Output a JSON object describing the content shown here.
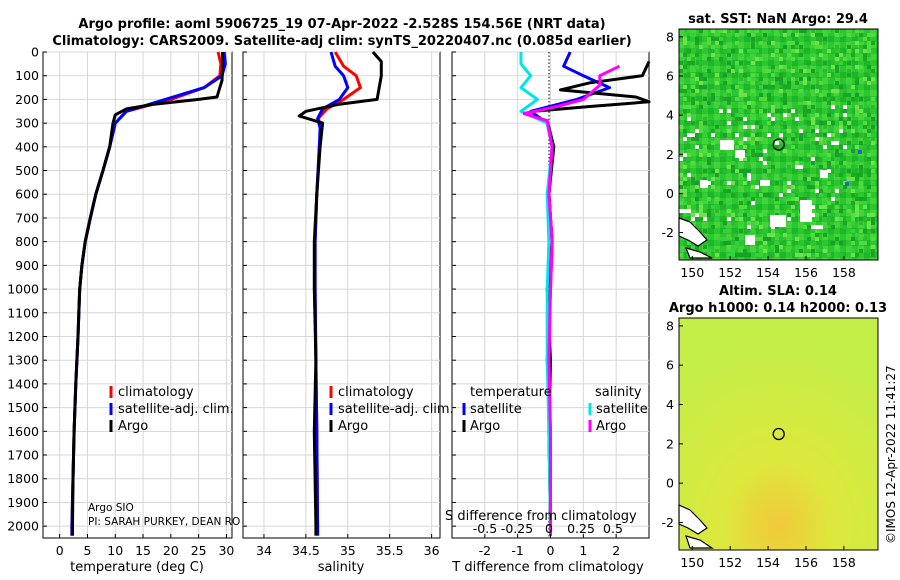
{
  "header": {
    "title_line1": "Argo profile: aoml 5906725_19 07-Apr-2022 -2.528S 154.56E (NRT data)",
    "title_line2": "Climatology: CARS2009. Satellite-adj clim: synTS_20220407.nc (0.085d earlier)"
  },
  "side_stamp": "©IMOS 12-Apr-2022 11:41:27",
  "chart_data": [
    {
      "id": "temp",
      "type": "line",
      "xlabel": "temperature (deg C)",
      "ylabel": "",
      "xlim": [
        -3,
        31
      ],
      "ylim": [
        2050,
        0
      ],
      "xticks": [
        "0",
        "5",
        "10",
        "15",
        "20",
        "25",
        "30"
      ],
      "xtick_values": [
        0,
        5,
        10,
        15,
        20,
        25,
        30
      ],
      "yticks": [
        "0",
        "100",
        "200",
        "300",
        "400",
        "500",
        "600",
        "700",
        "800",
        "900",
        "1000",
        "1100",
        "1200",
        "1300",
        "1400",
        "1500",
        "1600",
        "1700",
        "1800",
        "1900",
        "2000"
      ],
      "ytick_values": [
        0,
        100,
        200,
        300,
        400,
        500,
        600,
        700,
        800,
        900,
        1000,
        1100,
        1200,
        1300,
        1400,
        1500,
        1600,
        1700,
        1800,
        1900,
        2000
      ],
      "series": [
        {
          "name": "climatology",
          "color": "#ff0000",
          "points": [
            [
              28.5,
              0
            ],
            [
              29.0,
              50
            ],
            [
              28.8,
              100
            ],
            [
              26,
              150
            ],
            [
              20,
              200
            ],
            [
              12,
              250
            ],
            [
              10,
              300
            ],
            [
              9,
              400
            ],
            [
              7.8,
              500
            ],
            [
              6.5,
              600
            ],
            [
              5.5,
              700
            ],
            [
              4.6,
              800
            ],
            [
              4.0,
              900
            ],
            [
              3.6,
              1000
            ],
            [
              3.3,
              1200
            ],
            [
              2.9,
              1400
            ],
            [
              2.6,
              1600
            ],
            [
              2.4,
              1800
            ],
            [
              2.2,
              2000
            ],
            [
              2.2,
              2040
            ]
          ]
        },
        {
          "name": "satellite-adj. clim.",
          "color": "#0000ff",
          "points": [
            [
              29.6,
              0
            ],
            [
              29.8,
              50
            ],
            [
              29.2,
              100
            ],
            [
              26,
              150
            ],
            [
              19,
              200
            ],
            [
              12,
              250
            ],
            [
              10,
              300
            ],
            [
              9,
              400
            ],
            [
              7.8,
              500
            ],
            [
              6.5,
              600
            ],
            [
              5.5,
              700
            ],
            [
              4.6,
              800
            ],
            [
              4.0,
              900
            ],
            [
              3.6,
              1000
            ],
            [
              3.3,
              1200
            ],
            [
              2.9,
              1400
            ],
            [
              2.6,
              1600
            ],
            [
              2.4,
              1800
            ],
            [
              2.2,
              2000
            ],
            [
              2.2,
              2040
            ]
          ]
        },
        {
          "name": "Argo",
          "color": "#000000",
          "points": [
            [
              29.3,
              0
            ],
            [
              29.3,
              60
            ],
            [
              29.2,
              120
            ],
            [
              28.8,
              150
            ],
            [
              28.3,
              190
            ],
            [
              25,
              200
            ],
            [
              17,
              220
            ],
            [
              12,
              240
            ],
            [
              10,
              265
            ],
            [
              9.6,
              300
            ],
            [
              9,
              400
            ],
            [
              7.8,
              500
            ],
            [
              6.5,
              600
            ],
            [
              5.5,
              700
            ],
            [
              4.6,
              800
            ],
            [
              4.0,
              900
            ],
            [
              3.6,
              1000
            ],
            [
              3.3,
              1200
            ],
            [
              2.9,
              1400
            ],
            [
              2.6,
              1600
            ],
            [
              2.4,
              1800
            ],
            [
              2.3,
              2000
            ],
            [
              2.3,
              2040
            ]
          ]
        }
      ],
      "legend": [
        "climatology",
        "satellite-adj. clim.",
        "Argo"
      ],
      "annotations": [
        "Argo SIO",
        "PI: SARAH PURKEY, DEAN RO"
      ]
    },
    {
      "id": "sal",
      "type": "line",
      "xlabel": "salinity",
      "ylabel": "",
      "xlim": [
        33.75,
        36.1
      ],
      "ylim": [
        2050,
        0
      ],
      "xticks": [
        "34",
        "34.5",
        "35",
        "35.5",
        "36"
      ],
      "xtick_values": [
        34,
        34.5,
        35,
        35.5,
        36
      ],
      "series": [
        {
          "name": "climatology",
          "color": "#ff0000",
          "points": [
            [
              34.85,
              0
            ],
            [
              34.95,
              60
            ],
            [
              35.1,
              100
            ],
            [
              35.15,
              150
            ],
            [
              34.95,
              200
            ],
            [
              34.75,
              240
            ],
            [
              34.65,
              280
            ],
            [
              34.68,
              320
            ],
            [
              34.66,
              400
            ],
            [
              34.63,
              600
            ],
            [
              34.61,
              800
            ],
            [
              34.61,
              1000
            ],
            [
              34.62,
              1300
            ],
            [
              34.63,
              1600
            ],
            [
              34.64,
              2000
            ],
            [
              34.64,
              2040
            ]
          ]
        },
        {
          "name": "satellite-adj. clim.",
          "color": "#0000ff",
          "points": [
            [
              34.8,
              0
            ],
            [
              34.85,
              60
            ],
            [
              34.95,
              100
            ],
            [
              35.0,
              150
            ],
            [
              34.9,
              200
            ],
            [
              34.7,
              240
            ],
            [
              34.64,
              280
            ],
            [
              34.67,
              320
            ],
            [
              34.66,
              400
            ],
            [
              34.63,
              600
            ],
            [
              34.61,
              800
            ],
            [
              34.61,
              1000
            ],
            [
              34.62,
              1300
            ],
            [
              34.63,
              1600
            ],
            [
              34.64,
              2000
            ],
            [
              34.64,
              2040
            ]
          ]
        },
        {
          "name": "Argo",
          "color": "#000000",
          "points": [
            [
              35.3,
              0
            ],
            [
              35.4,
              40
            ],
            [
              35.4,
              100
            ],
            [
              35.35,
              200
            ],
            [
              34.9,
              220
            ],
            [
              34.5,
              250
            ],
            [
              34.42,
              270
            ],
            [
              34.7,
              300
            ],
            [
              34.67,
              400
            ],
            [
              34.63,
              600
            ],
            [
              34.6,
              800
            ],
            [
              34.6,
              1000
            ],
            [
              34.62,
              1300
            ],
            [
              34.6,
              1600
            ],
            [
              34.62,
              2000
            ],
            [
              34.62,
              2040
            ]
          ]
        }
      ],
      "legend": [
        "climatology",
        "satellite-adj. clim.",
        "Argo"
      ]
    },
    {
      "id": "diff",
      "type": "line",
      "xlabel": "T difference from climatology",
      "ylabel": "",
      "xlim": [
        -3,
        3
      ],
      "ylim": [
        2050,
        0
      ],
      "xticks": [
        "-2",
        "-1",
        "0",
        "1",
        "2"
      ],
      "xtick_values": [
        -2,
        -1,
        0,
        1,
        2
      ],
      "secondary_axis_label": "S difference from climatology",
      "secondary_ticks": [
        "-0.5",
        "-0.25",
        "0",
        "0.25",
        "0.5"
      ],
      "secondary_tick_values": [
        -0.5,
        -0.25,
        0,
        0.25,
        0.5
      ],
      "series": [
        {
          "name": "temperature satellite",
          "color": "#0000ff",
          "points": [
            [
              0.6,
              0
            ],
            [
              0.4,
              60
            ],
            [
              1.0,
              100
            ],
            [
              1.8,
              150
            ],
            [
              0.8,
              200
            ],
            [
              -0.6,
              250
            ],
            [
              -0.1,
              300
            ],
            [
              0.05,
              400
            ],
            [
              -0.05,
              600
            ],
            [
              0.05,
              800
            ],
            [
              0,
              1000
            ],
            [
              -0.1,
              1300
            ],
            [
              0,
              1600
            ],
            [
              0,
              2000
            ],
            [
              0,
              2040
            ]
          ]
        },
        {
          "name": "temperature Argo",
          "color": "#000000",
          "points": [
            [
              3,
              40
            ],
            [
              2.8,
              100
            ],
            [
              1.2,
              130
            ],
            [
              0.3,
              160
            ],
            [
              2.6,
              190
            ],
            [
              3,
              210
            ],
            [
              1.2,
              230
            ],
            [
              -0.5,
              250
            ],
            [
              -0.8,
              260
            ],
            [
              -0.1,
              290
            ],
            [
              0.1,
              400
            ],
            [
              -0.05,
              600
            ],
            [
              0.05,
              800
            ],
            [
              -0.1,
              1000
            ],
            [
              0,
              1300
            ],
            [
              -0.05,
              1600
            ],
            [
              0,
              2000
            ],
            [
              0,
              2040
            ]
          ]
        },
        {
          "name": "salinity satellite",
          "color": "#00e5e5",
          "points": [
            [
              -0.9,
              0
            ],
            [
              -0.9,
              50
            ],
            [
              -0.6,
              100
            ],
            [
              -0.9,
              150
            ],
            [
              -0.4,
              200
            ],
            [
              -0.9,
              250
            ],
            [
              -0.1,
              300
            ],
            [
              0.05,
              400
            ],
            [
              -0.1,
              600
            ],
            [
              -0.05,
              800
            ],
            [
              -0.1,
              1000
            ],
            [
              -0.1,
              1300
            ],
            [
              -0.05,
              1600
            ],
            [
              0,
              2000
            ],
            [
              0,
              2040
            ]
          ]
        },
        {
          "name": "salinity Argo",
          "color": "#ff00ff",
          "points": [
            [
              2.1,
              60
            ],
            [
              1.5,
              100
            ],
            [
              1.5,
              140
            ],
            [
              1.0,
              200
            ],
            [
              0.2,
              230
            ],
            [
              -0.8,
              260
            ],
            [
              -0.1,
              290
            ],
            [
              0.05,
              400
            ],
            [
              -0.05,
              600
            ],
            [
              0.05,
              800
            ],
            [
              0,
              1000
            ],
            [
              -0.05,
              1300
            ],
            [
              0,
              1600
            ],
            [
              0,
              2000
            ],
            [
              0,
              2040
            ]
          ]
        }
      ],
      "legend_groups": [
        {
          "title": "temperature",
          "items": [
            "satellite",
            "Argo"
          ]
        },
        {
          "title": "salinity",
          "items": [
            "satellite",
            "Argo"
          ]
        }
      ]
    },
    {
      "id": "sst_map",
      "type": "heatmap",
      "title": "sat. SST: NaN Argo: 29.4",
      "xlim": [
        149.3,
        159.8
      ],
      "ylim": [
        -3.4,
        8.4
      ],
      "xticks": [
        "150",
        "152",
        "154",
        "156",
        "158"
      ],
      "xtick_values": [
        150,
        152,
        154,
        156,
        158
      ],
      "yticks": [
        "-2",
        "0",
        "2",
        "4",
        "6",
        "8"
      ],
      "ytick_values": [
        -2,
        0,
        2,
        4,
        6,
        8
      ],
      "marker": [
        154.56,
        2.5
      ],
      "base_color": "#22c230"
    },
    {
      "id": "sla_map",
      "type": "heatmap",
      "title_line1": "Altim. SLA: 0.14",
      "title_line2": "Argo h1000: 0.14 h2000: 0.13",
      "xlim": [
        149.3,
        159.8
      ],
      "ylim": [
        -3.4,
        8.4
      ],
      "xticks": [
        "150",
        "152",
        "154",
        "156",
        "158"
      ],
      "xtick_values": [
        150,
        152,
        154,
        156,
        158
      ],
      "yticks": [
        "-2",
        "0",
        "2",
        "4",
        "6",
        "8"
      ],
      "ytick_values": [
        -2,
        0,
        2,
        4,
        6,
        8
      ],
      "marker": [
        154.56,
        2.5
      ],
      "base_color": "#c8f040"
    }
  ]
}
